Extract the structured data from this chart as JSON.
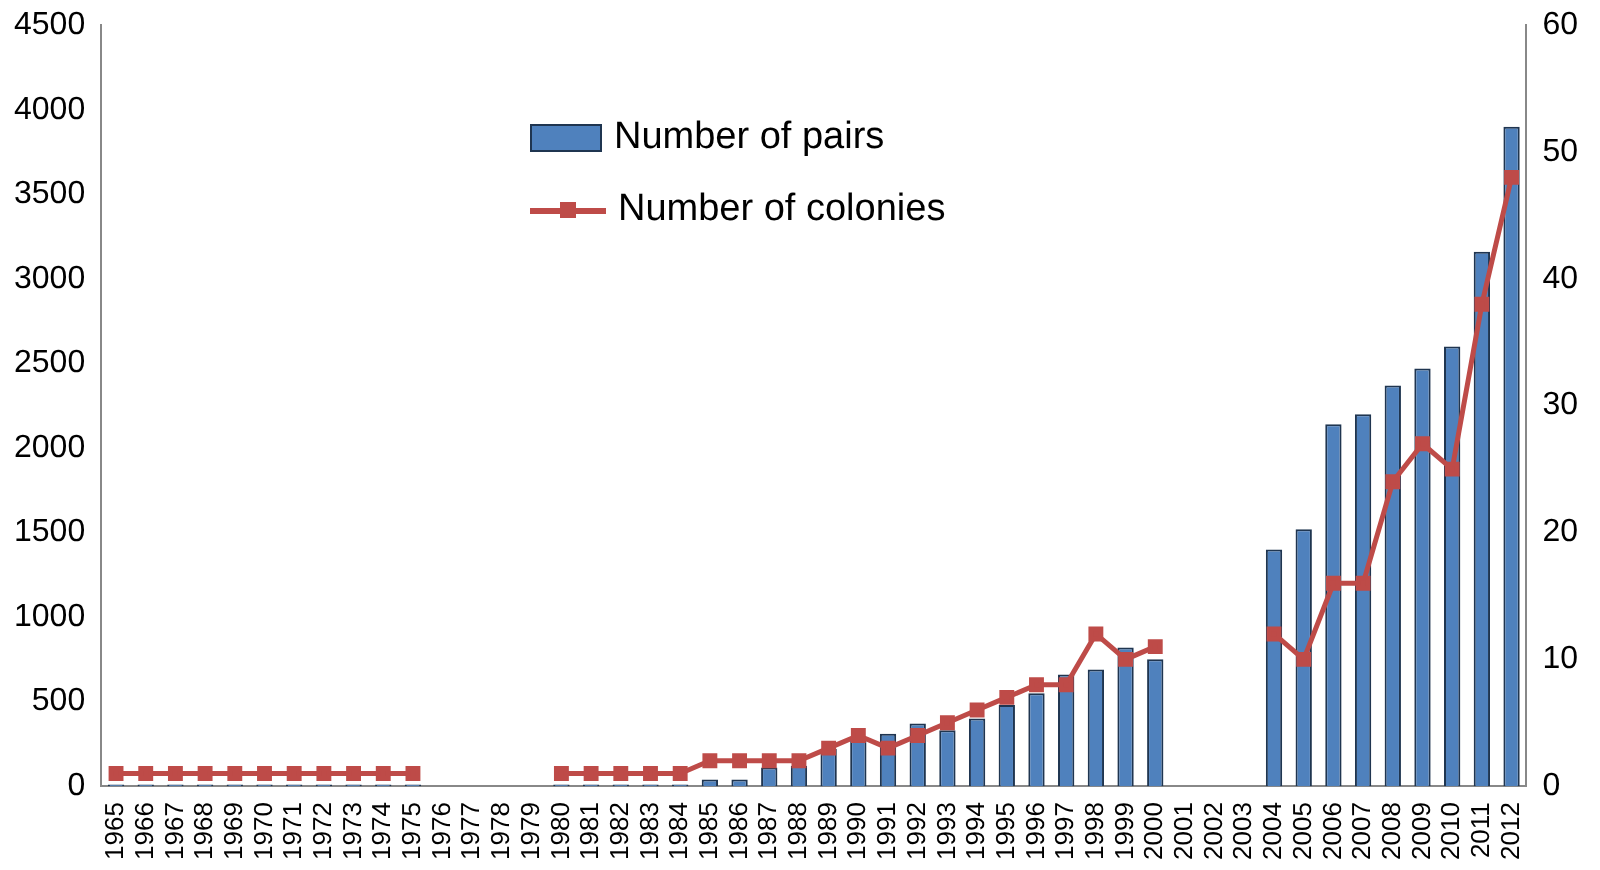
{
  "chart_data": {
    "type": "bar",
    "categories": [
      "1965",
      "1966",
      "1967",
      "1968",
      "1969",
      "1970",
      "1971",
      "1972",
      "1973",
      "1974",
      "1975",
      "1976",
      "1977",
      "1978",
      "1979",
      "1980",
      "1981",
      "1982",
      "1983",
      "1984",
      "1985",
      "1986",
      "1987",
      "1988",
      "1989",
      "1990",
      "1991",
      "1992",
      "1993",
      "1994",
      "1995",
      "1996",
      "1997",
      "1998",
      "1999",
      "2000",
      "2001",
      "2002",
      "2003",
      "2004",
      "2005",
      "2006",
      "2007",
      "2008",
      "2009",
      "2010",
      "2011",
      "2012"
    ],
    "series": [
      {
        "name": "Number of pairs",
        "color": "#4f81bd",
        "values": [
          10,
          10,
          10,
          10,
          10,
          10,
          10,
          10,
          10,
          10,
          10,
          null,
          null,
          null,
          null,
          10,
          10,
          10,
          10,
          10,
          40,
          40,
          110,
          120,
          220,
          280,
          310,
          370,
          330,
          400,
          480,
          550,
          660,
          690,
          820,
          750,
          null,
          null,
          null,
          1400,
          1520,
          2140,
          2200,
          2370,
          2470,
          2600,
          3160,
          3900
        ]
      },
      {
        "name": "Number of colonies",
        "type": "line",
        "axis": "y2",
        "color": "#be4b48",
        "marker": "square",
        "values": [
          1,
          1,
          1,
          1,
          1,
          1,
          1,
          1,
          1,
          1,
          1,
          null,
          null,
          null,
          null,
          1,
          1,
          1,
          1,
          1,
          2,
          2,
          2,
          2,
          3,
          4,
          3,
          4,
          5,
          6,
          7,
          8,
          8,
          12,
          10,
          11,
          null,
          null,
          null,
          12,
          10,
          16,
          16,
          24,
          27,
          25,
          38,
          48
        ]
      }
    ],
    "ylim": [
      0,
      4500
    ],
    "yticks": [
      0,
      500,
      1000,
      1500,
      2000,
      2500,
      3000,
      3500,
      4000,
      4500
    ],
    "y2lim": [
      0,
      60
    ],
    "y2ticks": [
      0,
      10,
      20,
      30,
      40,
      50,
      60
    ],
    "grid": false,
    "legend": "top"
  }
}
